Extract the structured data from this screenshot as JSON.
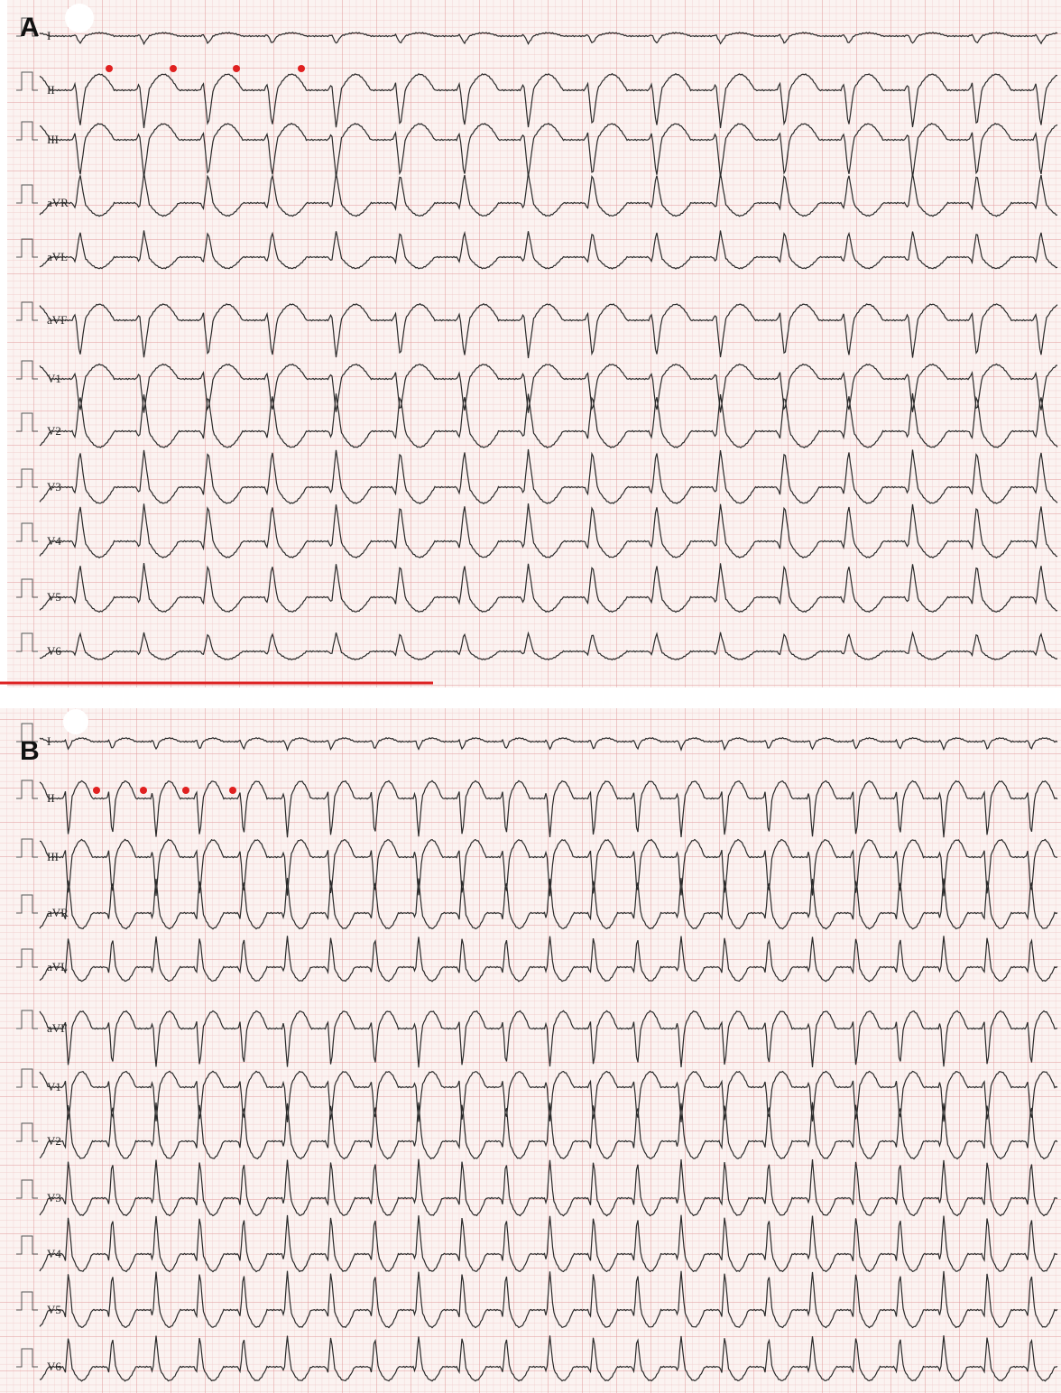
{
  "panels": [
    {
      "label": "A",
      "leads": [
        "I",
        "II",
        "III",
        "aVR",
        "aVL",
        "aVF",
        "V1",
        "V2",
        "V3",
        "V4",
        "V5",
        "V6"
      ]
    },
    {
      "label": "B",
      "leads": [
        "I",
        "II",
        "III",
        "aVR",
        "aVL",
        "aVF",
        "V1",
        "V2",
        "V3",
        "V4",
        "V5",
        "V6"
      ]
    }
  ]
}
